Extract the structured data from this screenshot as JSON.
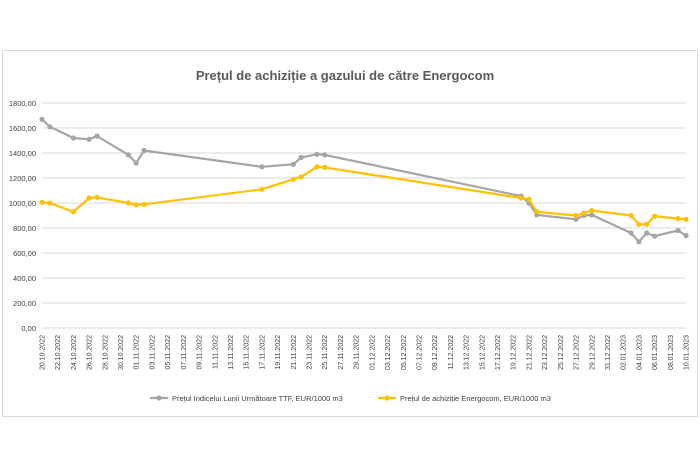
{
  "chart_data": {
    "type": "line",
    "title": "Prețul de achiziție a gazului de către Energocom",
    "xlabel": "",
    "ylabel": "",
    "ylim": [
      0,
      1800
    ],
    "y_ticks": [
      "0,00",
      "200,00",
      "400,00",
      "600,00",
      "800,00",
      "1000,00",
      "1200,00",
      "1400,00",
      "1600,00",
      "1800,00"
    ],
    "x_range": [
      "2022-10-20",
      "2023-01-10"
    ],
    "x_tick_labels": [
      "20.10.2022",
      "22.10.2022",
      "24.10.2022",
      "26.10.2022",
      "28.10.2022",
      "30.10.2022",
      "01.11.2022",
      "03.11.2022",
      "05.11.2022",
      "07.11.2022",
      "09.11.2022",
      "11.11.2022",
      "13.11.2022",
      "15.11.2022",
      "17.11.2022",
      "19.11.2022",
      "21.11.2022",
      "23.11.2022",
      "25.11.2022",
      "27.11.2022",
      "29.11.2022",
      "01.12.2022",
      "03.12.2022",
      "05.12.2022",
      "07.12.2022",
      "09.12.2022",
      "11.12.2022",
      "13.12.2022",
      "15.12.2022",
      "17.12.2022",
      "19.12.2022",
      "21.12.2022",
      "23.12.2022",
      "25.12.2022",
      "27.12.2022",
      "29.12.2022",
      "31.12.2022",
      "02.01.2023",
      "04.01.2023",
      "06.01.2023",
      "08.01.2023",
      "10.01.2023"
    ],
    "grid": true,
    "legend_position": "bottom",
    "series": [
      {
        "name": "Prețul Indicelui Lunii Următoare TTF,  EUR/1000 m3",
        "color": "#a5a5a5",
        "points": [
          [
            "2022-10-20",
            1670
          ],
          [
            "2022-10-21",
            1610
          ],
          [
            "2022-10-24",
            1520
          ],
          [
            "2022-10-26",
            1510
          ],
          [
            "2022-10-27",
            1535
          ],
          [
            "2022-10-31",
            1385
          ],
          [
            "2022-11-01",
            1320
          ],
          [
            "2022-11-02",
            1420
          ],
          [
            "2022-11-17",
            1290
          ],
          [
            "2022-11-21",
            1310
          ],
          [
            "2022-11-22",
            1365
          ],
          [
            "2022-11-24",
            1390
          ],
          [
            "2022-11-25",
            1385
          ],
          [
            "2022-12-20",
            1055
          ],
          [
            "2022-12-21",
            1000
          ],
          [
            "2022-12-22",
            905
          ],
          [
            "2022-12-27",
            870
          ],
          [
            "2022-12-28",
            900
          ],
          [
            "2022-12-29",
            905
          ],
          [
            "2023-01-03",
            760
          ],
          [
            "2023-01-04",
            690
          ],
          [
            "2023-01-05",
            760
          ],
          [
            "2023-01-06",
            735
          ],
          [
            "2023-01-09",
            780
          ],
          [
            "2023-01-10",
            740
          ]
        ]
      },
      {
        "name": "Prețul de achiziție Energocom, EUR/1000 m3",
        "color": "#ffc000",
        "points": [
          [
            "2022-10-20",
            1005
          ],
          [
            "2022-10-21",
            1000
          ],
          [
            "2022-10-24",
            930
          ],
          [
            "2022-10-26",
            1040
          ],
          [
            "2022-10-27",
            1045
          ],
          [
            "2022-10-31",
            1000
          ],
          [
            "2022-11-01",
            985
          ],
          [
            "2022-11-02",
            990
          ],
          [
            "2022-11-17",
            1110
          ],
          [
            "2022-11-21",
            1190
          ],
          [
            "2022-11-22",
            1210
          ],
          [
            "2022-11-24",
            1290
          ],
          [
            "2022-11-25",
            1285
          ],
          [
            "2022-12-20",
            1040
          ],
          [
            "2022-12-21",
            1030
          ],
          [
            "2022-12-22",
            930
          ],
          [
            "2022-12-27",
            900
          ],
          [
            "2022-12-28",
            920
          ],
          [
            "2022-12-29",
            940
          ],
          [
            "2023-01-03",
            900
          ],
          [
            "2023-01-04",
            830
          ],
          [
            "2023-01-05",
            830
          ],
          [
            "2023-01-06",
            895
          ],
          [
            "2023-01-09",
            875
          ],
          [
            "2023-01-10",
            870
          ]
        ]
      }
    ]
  }
}
